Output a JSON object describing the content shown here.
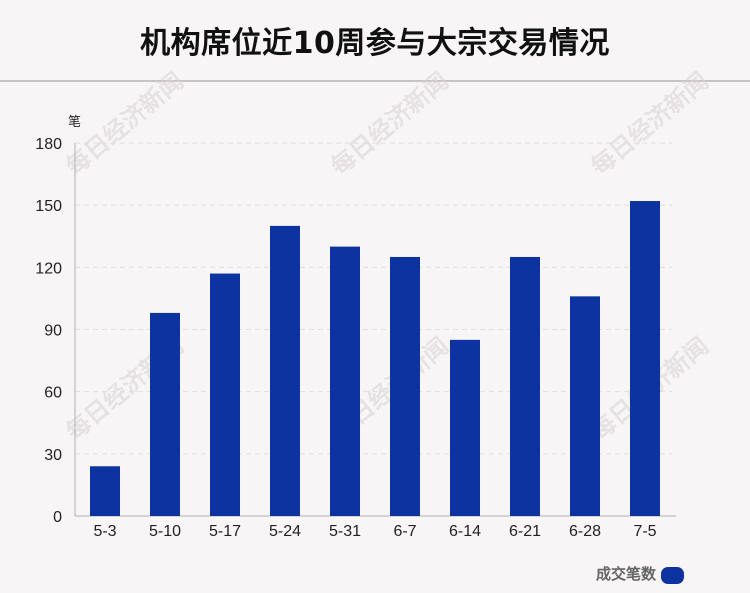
{
  "title": "机构席位近10周参与大宗交易情况",
  "watermark": "每日经济新闻",
  "chart_data": {
    "type": "bar",
    "categories": [
      "5-3",
      "5-10",
      "5-17",
      "5-24",
      "5-31",
      "6-7",
      "6-14",
      "6-21",
      "6-28",
      "7-5"
    ],
    "series": [
      {
        "name": "成交笔数",
        "values": [
          24,
          98,
          117,
          140,
          130,
          125,
          85,
          125,
          106,
          152
        ]
      }
    ],
    "ylabel": "笔",
    "ylim": [
      0,
      180
    ],
    "yticks": [
      0,
      30,
      60,
      90,
      120,
      150,
      180
    ],
    "grid": true,
    "legend_position": "bottom-right",
    "colors": {
      "bar": "#0d33a0",
      "grid": "#dedede",
      "axis": "#b0b0b0"
    }
  }
}
